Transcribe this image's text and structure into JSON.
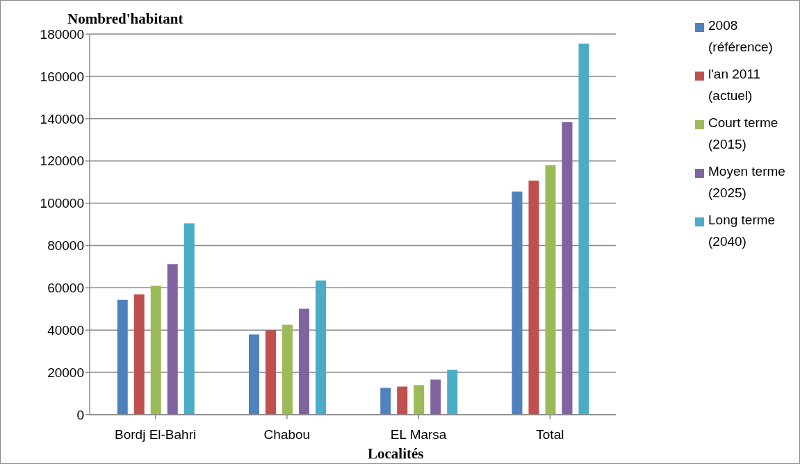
{
  "chart_data": {
    "type": "bar",
    "ylabel": "Nombred'habitant",
    "xlabel": "Localités",
    "categories": [
      "Bordj El-Bahri",
      "Chabou",
      "EL Marsa",
      "Total"
    ],
    "series": [
      {
        "name": "2008 (référence)",
        "color": "#4f81bd",
        "values": [
          54300,
          37900,
          12700,
          105500
        ]
      },
      {
        "name": "l'an 2011 (actuel)",
        "color": "#c0504d",
        "values": [
          56900,
          39900,
          13300,
          110700
        ]
      },
      {
        "name": "Court terme (2015)",
        "color": "#9bbb59",
        "values": [
          60900,
          42500,
          14000,
          118000
        ]
      },
      {
        "name": "Moyen terme (2025)",
        "color": "#8064a2",
        "values": [
          71200,
          50100,
          16600,
          138300
        ]
      },
      {
        "name": "Long terme (2040)",
        "color": "#4bacc6",
        "values": [
          90500,
          63500,
          21200,
          175500
        ]
      }
    ],
    "ylim": [
      0,
      180000
    ],
    "yticks": [
      0,
      20000,
      40000,
      60000,
      80000,
      100000,
      120000,
      140000,
      160000,
      180000
    ],
    "grid": "y",
    "legend": "right"
  }
}
